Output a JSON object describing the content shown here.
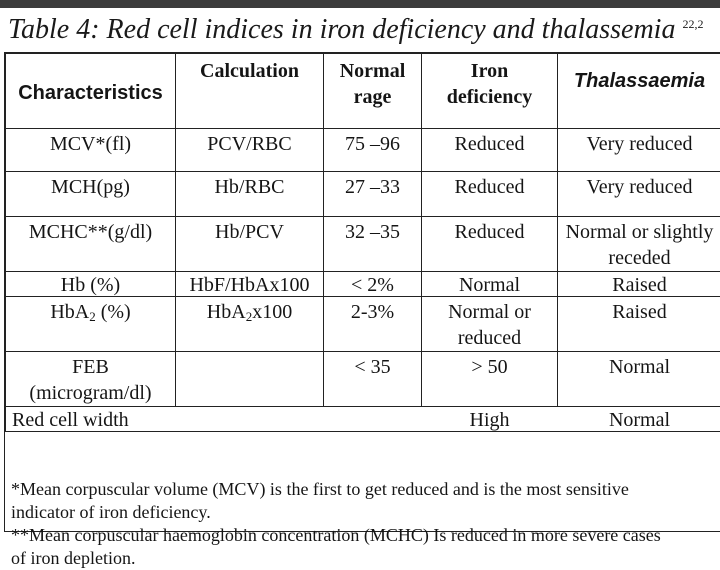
{
  "title": {
    "text": "Table 4: Red cell indices in iron deficiency and thalassemia",
    "superscript": "22,2"
  },
  "headers": {
    "characteristics": "Characteristics",
    "calculation": "Calculation",
    "normal_range_line1": "Normal",
    "normal_range_line2": "rage",
    "iron_line1": "Iron",
    "iron_line2": "deficiency",
    "thalassaemia": "Thalassaemia"
  },
  "rows": [
    {
      "characteristic": "MCV*(fl)",
      "calculation": "PCV/RBC",
      "normal": "75 –96",
      "iron": "Reduced",
      "thal": "Very reduced"
    },
    {
      "characteristic": "MCH(pg)",
      "calculation": "Hb/RBC",
      "normal": "27 –33",
      "iron": "Reduced",
      "thal": "Very reduced"
    },
    {
      "characteristic": "MCHC**(g/dl)",
      "calculation": "Hb/PCV",
      "normal": "32 –35",
      "iron": "Reduced",
      "thal_line1": "Normal or slightly",
      "thal_line2": "receded"
    },
    {
      "characteristic": "Hb (%)",
      "calculation": "HbF/HbAx100",
      "normal": "< 2%",
      "iron": "Normal",
      "thal": "Raised"
    },
    {
      "characteristic_pre": "HbA",
      "characteristic_sub": "2",
      "characteristic_post": " (%)",
      "calculation_pre": "HbA",
      "calculation_sub": "2",
      "calculation_post": "x100",
      "normal": "2-3%",
      "iron_line1": "Normal or",
      "iron_line2": "reduced",
      "thal": "Raised"
    },
    {
      "characteristic_line1": "FEB",
      "characteristic_line2": "(microgram/dl)",
      "calculation": "",
      "normal": "< 35",
      "iron": "> 50",
      "thal": "Normal"
    },
    {
      "characteristic": "Red cell width",
      "iron": "High",
      "thal": "Normal"
    }
  ],
  "notes": {
    "note1_line1": "*Mean corpuscular volume (MCV) is the first to get reduced and is the most sensitive",
    "note1_line2": "indicator of iron deficiency.",
    "note2_line1": "**Mean corpuscular haemoglobin concentration (MCHC) Is reduced in more severe cases",
    "note2_line2": "of iron depletion."
  }
}
